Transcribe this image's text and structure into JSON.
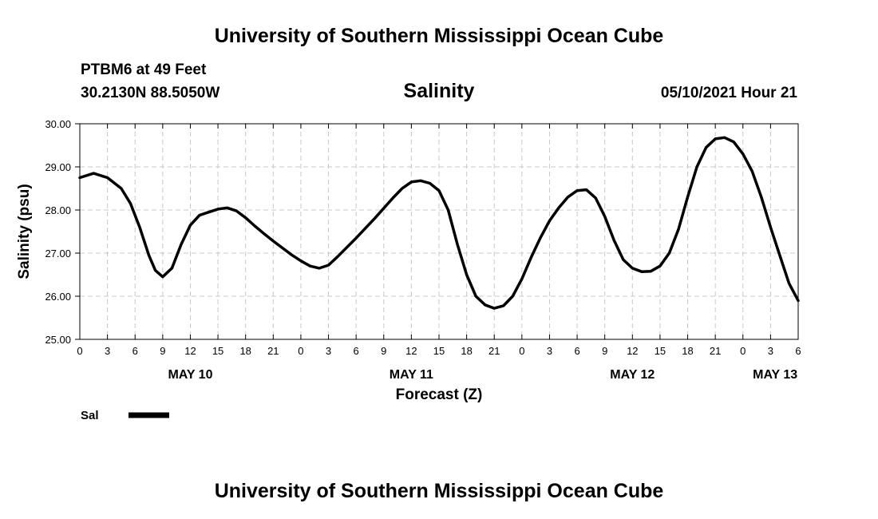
{
  "page": {
    "title_top": "University of Southern Mississippi Ocean Cube",
    "title_bottom": "University of Southern Mississippi Ocean Cube",
    "station": "PTBM6 at 49 Feet",
    "location": "30.2130N  88.5050W",
    "chart_title": "Salinity",
    "run_time": "05/10/2021 Hour 21"
  },
  "chart_data": {
    "type": "line",
    "title": "Salinity",
    "xlabel": "Forecast (Z)",
    "ylabel": "Salinity (psu)",
    "ylim": [
      25.0,
      30.0
    ],
    "yticks": [
      25.0,
      26.0,
      27.0,
      28.0,
      29.0,
      30.0
    ],
    "ytick_labels": [
      "25.00",
      "26.00",
      "27.00",
      "28.00",
      "29.00",
      "30.00"
    ],
    "xlim": [
      0,
      78
    ],
    "xticks": [
      0,
      3,
      6,
      9,
      12,
      15,
      18,
      21,
      24,
      27,
      30,
      33,
      36,
      39,
      42,
      45,
      48,
      51,
      54,
      57,
      60,
      63,
      66,
      69,
      72,
      75,
      78
    ],
    "xtick_labels": [
      "0",
      "3",
      "6",
      "9",
      "12",
      "15",
      "18",
      "21",
      "0",
      "3",
      "6",
      "9",
      "12",
      "15",
      "18",
      "21",
      "0",
      "3",
      "6",
      "9",
      "12",
      "15",
      "18",
      "21",
      "0",
      "3",
      "6"
    ],
    "date_labels": [
      {
        "x": 12,
        "label": "MAY 10"
      },
      {
        "x": 36,
        "label": "MAY 11"
      },
      {
        "x": 60,
        "label": "MAY 12"
      },
      {
        "x": 75.5,
        "label": "MAY 13"
      }
    ],
    "grid": true,
    "legend": [
      {
        "name": "Sal",
        "color": "#000000"
      }
    ],
    "series": [
      {
        "name": "Sal",
        "color": "#000000",
        "x": [
          0,
          1.5,
          3,
          4.5,
          5.5,
          6.5,
          7.5,
          8.2,
          9,
          10,
          11,
          12,
          13,
          14,
          15,
          16,
          17,
          18,
          19,
          20,
          21,
          22,
          23,
          24,
          25,
          26,
          27,
          28,
          30,
          32,
          34,
          35,
          36,
          37,
          38,
          39,
          40,
          41,
          42,
          43,
          44,
          45,
          46,
          47,
          48,
          49,
          50,
          51,
          52,
          53,
          54,
          55,
          56,
          57,
          58,
          59,
          60,
          61,
          62,
          63,
          64,
          65,
          66,
          67,
          68,
          69,
          70,
          71,
          72,
          73,
          74,
          75,
          76,
          77,
          78
        ],
        "values": [
          28.75,
          28.85,
          28.75,
          28.5,
          28.15,
          27.6,
          26.95,
          26.6,
          26.45,
          26.65,
          27.2,
          27.65,
          27.88,
          27.95,
          28.02,
          28.05,
          27.98,
          27.82,
          27.63,
          27.45,
          27.28,
          27.12,
          26.96,
          26.82,
          26.7,
          26.65,
          26.72,
          26.92,
          27.35,
          27.8,
          28.28,
          28.5,
          28.65,
          28.68,
          28.62,
          28.45,
          28.0,
          27.2,
          26.5,
          26.0,
          25.8,
          25.72,
          25.78,
          26.0,
          26.4,
          26.9,
          27.35,
          27.75,
          28.05,
          28.3,
          28.45,
          28.47,
          28.28,
          27.85,
          27.3,
          26.85,
          26.65,
          26.57,
          26.58,
          26.7,
          27.0,
          27.55,
          28.3,
          29.0,
          29.45,
          29.65,
          29.68,
          29.58,
          29.3,
          28.9,
          28.3,
          27.6,
          26.95,
          26.3,
          25.9
        ]
      }
    ]
  }
}
